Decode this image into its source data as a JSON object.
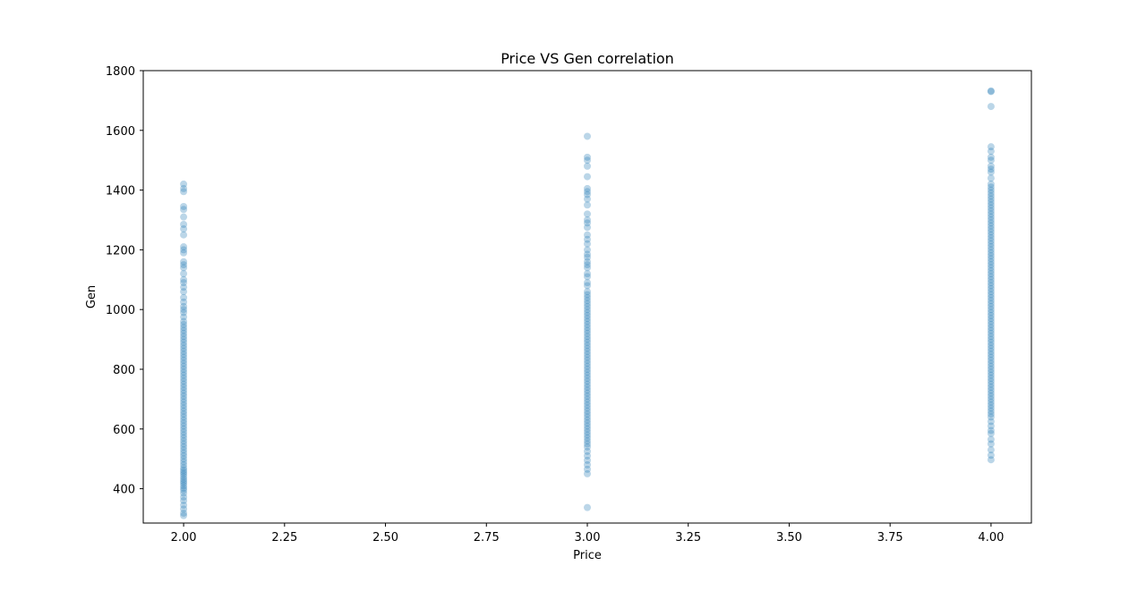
{
  "chart_data": {
    "type": "scatter",
    "title": "Price VS Gen correlation",
    "xlabel": "Price",
    "ylabel": "Gen",
    "xlim": [
      1.9,
      4.1
    ],
    "ylim": [
      285,
      1800
    ],
    "xticks": [
      2.0,
      2.25,
      2.5,
      2.75,
      3.0,
      3.25,
      3.5,
      3.75,
      4.0
    ],
    "xtick_labels": [
      "2.00",
      "2.25",
      "2.50",
      "2.75",
      "3.00",
      "3.25",
      "3.50",
      "3.75",
      "4.00"
    ],
    "yticks": [
      400,
      600,
      800,
      1000,
      1200,
      1400,
      1600,
      1800
    ],
    "ytick_labels": [
      "400",
      "600",
      "800",
      "1000",
      "1200",
      "1400",
      "1600",
      "1800"
    ],
    "grid": false,
    "marker_color": "#1f77b4",
    "marker_alpha": 0.3,
    "series": [
      {
        "x": 2.0,
        "y": [
          310,
          318,
          332,
          345,
          360,
          372,
          385,
          395,
          402,
          410,
          418,
          425,
          432,
          440,
          448,
          455,
          462,
          470,
          480,
          490,
          500,
          510,
          520,
          530,
          540,
          550,
          560,
          570,
          580,
          590,
          600,
          610,
          620,
          630,
          640,
          650,
          660,
          670,
          680,
          690,
          700,
          710,
          720,
          730,
          740,
          750,
          760,
          770,
          780,
          790,
          800,
          810,
          820,
          830,
          840,
          850,
          860,
          870,
          880,
          890,
          900,
          910,
          920,
          930,
          940,
          950,
          960,
          975,
          990,
          1000,
          1010,
          1025,
          1040,
          1060,
          1075,
          1090,
          1100,
          1120,
          1140,
          1150,
          1160,
          1190,
          1200,
          1210,
          1250,
          1270,
          1285,
          1310,
          1335,
          1345,
          1395,
          1405,
          1420
        ]
      },
      {
        "x": 3.0,
        "y": [
          337,
          450,
          465,
          480,
          495,
          510,
          525,
          540,
          550,
          560,
          570,
          580,
          590,
          600,
          610,
          620,
          630,
          640,
          650,
          660,
          670,
          680,
          690,
          700,
          710,
          720,
          730,
          740,
          750,
          760,
          770,
          780,
          790,
          800,
          810,
          820,
          830,
          840,
          850,
          860,
          870,
          880,
          890,
          900,
          910,
          920,
          930,
          940,
          950,
          960,
          970,
          980,
          990,
          1000,
          1010,
          1020,
          1030,
          1040,
          1050,
          1060,
          1080,
          1090,
          1110,
          1120,
          1140,
          1150,
          1160,
          1175,
          1185,
          1200,
          1220,
          1235,
          1250,
          1275,
          1290,
          1300,
          1320,
          1350,
          1370,
          1385,
          1395,
          1405,
          1445,
          1480,
          1500,
          1510,
          1580
        ]
      },
      {
        "x": 4.0,
        "y": [
          497,
          512,
          530,
          550,
          565,
          585,
          595,
          610,
          625,
          640,
          650,
          660,
          670,
          680,
          690,
          700,
          710,
          720,
          730,
          740,
          750,
          760,
          770,
          780,
          790,
          800,
          810,
          820,
          830,
          840,
          850,
          860,
          870,
          880,
          890,
          900,
          910,
          920,
          930,
          940,
          950,
          960,
          970,
          980,
          990,
          1000,
          1010,
          1020,
          1030,
          1040,
          1050,
          1060,
          1070,
          1080,
          1090,
          1100,
          1110,
          1120,
          1130,
          1140,
          1150,
          1160,
          1170,
          1180,
          1190,
          1200,
          1210,
          1220,
          1230,
          1240,
          1250,
          1260,
          1270,
          1280,
          1290,
          1300,
          1310,
          1320,
          1330,
          1340,
          1350,
          1360,
          1370,
          1380,
          1390,
          1400,
          1410,
          1420,
          1440,
          1460,
          1470,
          1480,
          1500,
          1510,
          1530,
          1545,
          1680,
          1730,
          1732
        ]
      }
    ]
  }
}
